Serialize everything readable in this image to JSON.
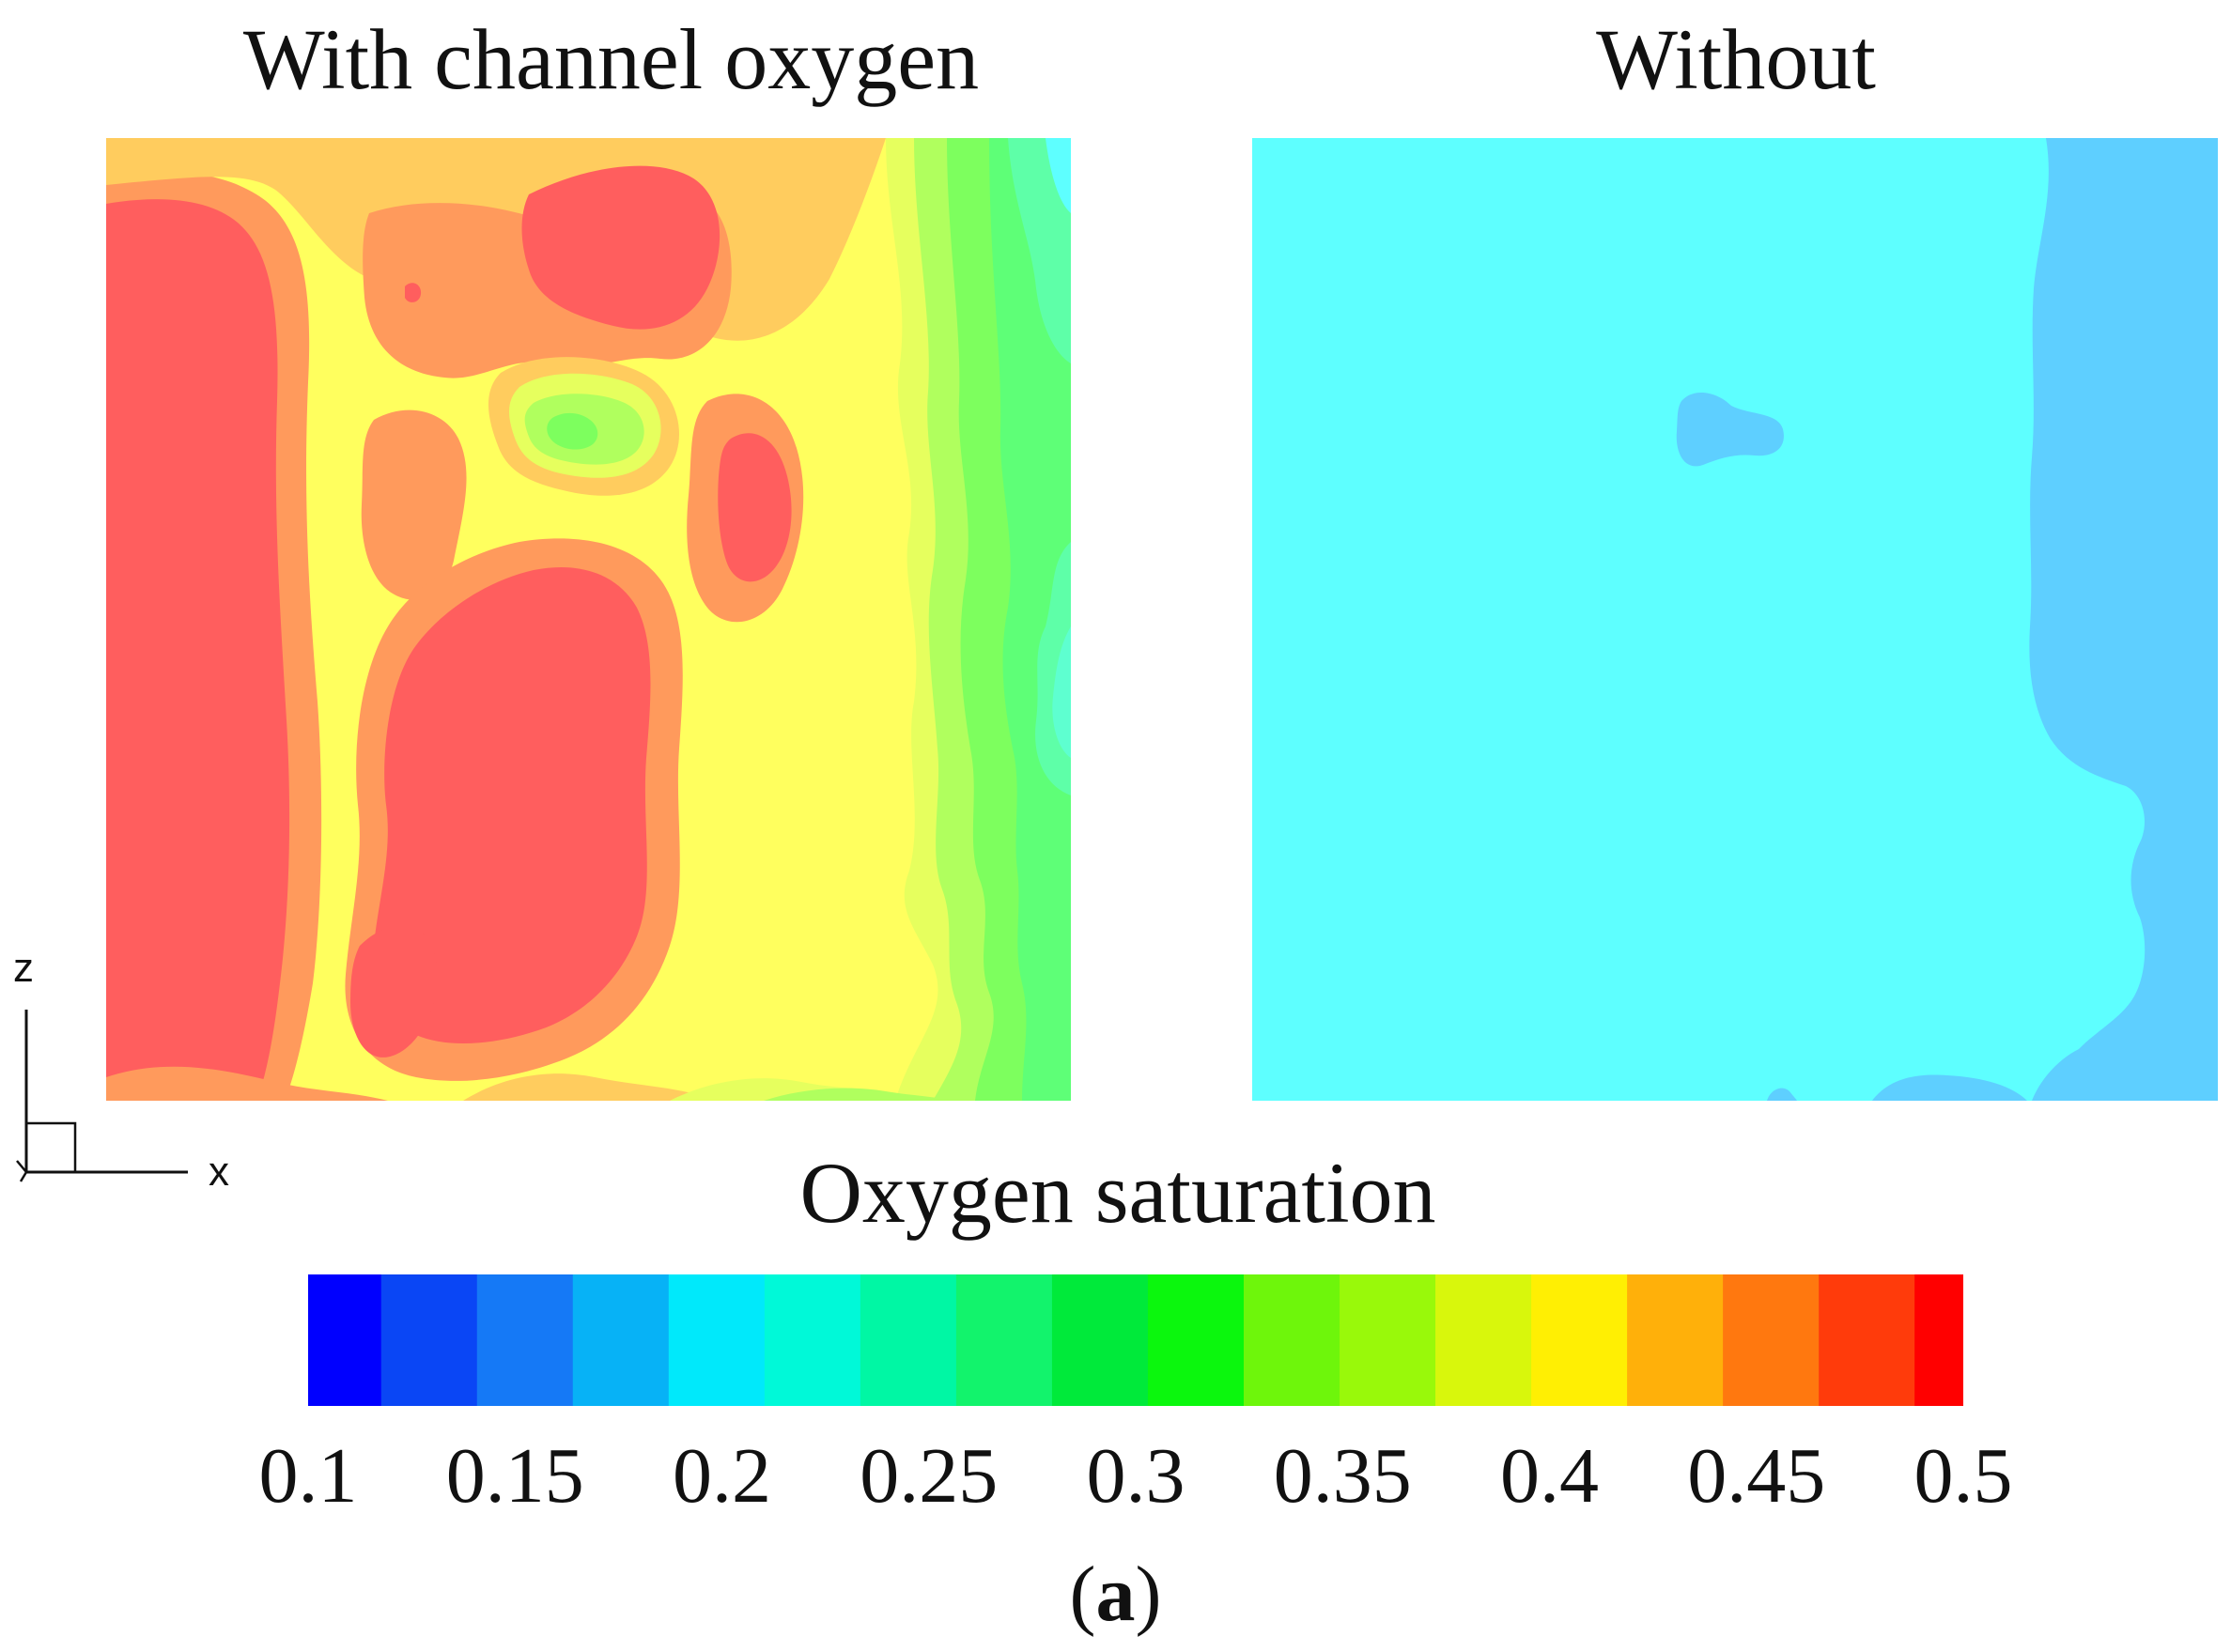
{
  "chart_data": {
    "type": "heatmap",
    "title": "Oxygen saturation",
    "panels": [
      {
        "name": "with",
        "title": "With channel oxygen"
      },
      {
        "name": "without",
        "title": "Without"
      }
    ],
    "axes": {
      "vertical": "z",
      "horizontal": "x"
    },
    "colorbar": {
      "label": "Oxygen saturation",
      "range": [
        0.1,
        0.5
      ],
      "levels": 17,
      "colors": [
        "#0000ff",
        "#0a46f5",
        "#1579f6",
        "#07b2f6",
        "#00e9fb",
        "#00f9d8",
        "#00f7a4",
        "#12f36c",
        "#00ea3a",
        "#0bf70d",
        "#6ef60b",
        "#99f90a",
        "#d8f70c",
        "#ffef03",
        "#ffb00a",
        "#ff780f",
        "#ff3b0b",
        "#ff0000"
      ],
      "tick_values": [
        0.1,
        0.15,
        0.2,
        0.25,
        0.3,
        0.35,
        0.4,
        0.45,
        0.5
      ],
      "tick_labels": [
        "0.1",
        "0.15",
        "0.2",
        "0.25",
        "0.3",
        "0.35",
        "0.4",
        "0.45",
        "0.5"
      ]
    },
    "fill_colors": {
      "red": "#ff5e5e",
      "orange": "#ff9a5c",
      "light_orange": "#ffcc5e",
      "yellow": "#ffff5e",
      "yellow_green": "#e6ff5e",
      "light_green": "#b0ff5e",
      "green": "#7dff5e",
      "mid_green": "#5eff77",
      "aqua_green": "#5effa8",
      "cyan_green": "#5effd0",
      "cyan": "#5effff",
      "light_blue": "#5ecfff"
    }
  },
  "caption": {
    "open": "(",
    "letter": "a",
    "close": ")"
  }
}
